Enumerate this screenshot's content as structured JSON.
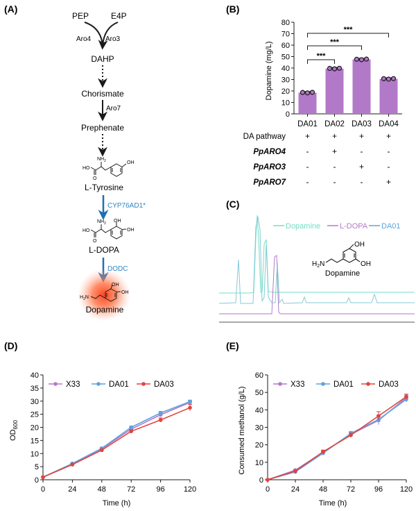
{
  "colors": {
    "purple": "#b379c9",
    "blue": "#5fa2dd",
    "red": "#e0443f",
    "teal": "#6fe0c4",
    "cyan": "#86c9d7",
    "arrow_blue": "#1f6fb2",
    "enzyme_blue": "#2d86c4",
    "black": "#1a1a1a"
  },
  "panel_labels": {
    "a": "(A)",
    "b": "(B)",
    "c": "(C)",
    "d": "(D)",
    "e": "(E)"
  },
  "pathway": {
    "pep": "PEP",
    "e4p": "E4P",
    "aro4": "Aro4",
    "aro3": "Aro3",
    "dahp": "DAHP",
    "chorismate": "Chorismate",
    "aro7": "Aro7",
    "prephenate": "Prephenate",
    "l_tyrosine": "L-Tyrosine",
    "cyp": "CYP76AD1*",
    "l_dopa": "L-DOPA",
    "dodc": "DODC",
    "dopamine": "Dopamine",
    "atoms": {
      "nh2": "NH",
      "two": "2",
      "ho": "HO",
      "oh": "OH",
      "o": "O",
      "h2n": "H",
      "n": "N"
    }
  },
  "panel_c": {
    "legend": [
      "Dopamine",
      "L-DOPA",
      "DA01"
    ],
    "structure_label": "Dopamine"
  },
  "chart_data": [
    {
      "type": "bar",
      "panel": "B",
      "categories": [
        "DA01",
        "DA02",
        "DA03",
        "DA04"
      ],
      "values": [
        18.5,
        39.5,
        47.5,
        30.5
      ],
      "ylabel": "Dopamine (mg/L)",
      "ylim": [
        0,
        80
      ],
      "yticks": [
        "0",
        "10",
        "20",
        "30",
        "40",
        "50",
        "60",
        "70",
        "80"
      ],
      "significance": [
        "***",
        "***",
        "***"
      ],
      "rows": [
        {
          "label": "DA pathway",
          "italic": false,
          "values": [
            "+",
            "+",
            "+",
            "+"
          ]
        },
        {
          "label": "PpARO4",
          "italic": true,
          "values": [
            "-",
            "+",
            "-",
            "-"
          ]
        },
        {
          "label": "PpARO3",
          "italic": true,
          "values": [
            "-",
            "-",
            "+",
            "-"
          ]
        },
        {
          "label": "PpARO7",
          "italic": true,
          "values": [
            "-",
            "-",
            "-",
            "+"
          ]
        }
      ]
    },
    {
      "type": "line",
      "panel": "D",
      "x": [
        0,
        24,
        48,
        72,
        96,
        120
      ],
      "xticks": [
        "0",
        "24",
        "48",
        "72",
        "96",
        "120"
      ],
      "yticks": [
        "0",
        "5",
        "10",
        "15",
        "20",
        "25",
        "30",
        "35",
        "40"
      ],
      "xlabel": "Time (h)",
      "ylabel": "OD",
      "ylabel_sub": "600",
      "xlim": [
        0,
        120
      ],
      "ylim": [
        0,
        40
      ],
      "series": [
        {
          "name": "X33",
          "values": [
            1,
            6,
            11.8,
            19.3,
            24.8,
            29.5
          ]
        },
        {
          "name": "DA01",
          "values": [
            1,
            6.2,
            12,
            20,
            25.5,
            29.8
          ]
        },
        {
          "name": "DA03",
          "values": [
            1,
            5.8,
            11.3,
            18.5,
            22.8,
            27.5
          ]
        }
      ]
    },
    {
      "type": "line",
      "panel": "E",
      "x": [
        0,
        24,
        48,
        72,
        96,
        120
      ],
      "xticks": [
        "0",
        "24",
        "48",
        "72",
        "96",
        "120"
      ],
      "yticks": [
        "0",
        "10",
        "20",
        "30",
        "40",
        "50",
        "60"
      ],
      "xlabel": "Time (h)",
      "ylabel": "Consumed methanol (g/L)",
      "xlim": [
        0,
        120
      ],
      "ylim": [
        0,
        60
      ],
      "series": [
        {
          "name": "X33",
          "values": [
            0,
            5.5,
            15.8,
            26,
            34,
            47
          ]
        },
        {
          "name": "DA01",
          "values": [
            0,
            4.5,
            15.2,
            26.5,
            34.5,
            46
          ]
        },
        {
          "name": "DA03",
          "values": [
            0,
            5,
            16,
            25.5,
            36.5,
            47.5
          ]
        }
      ]
    }
  ]
}
